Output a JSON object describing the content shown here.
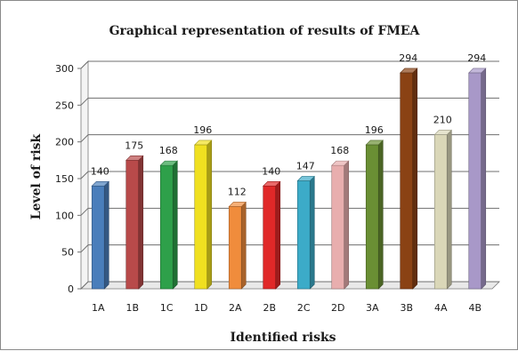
{
  "chart_data": {
    "type": "bar",
    "title": "Graphical representation of results of FMEA",
    "xlabel": "Identified risks",
    "ylabel": "Level of risk",
    "ylim": [
      0,
      300
    ],
    "yticks": [
      0,
      50,
      100,
      150,
      200,
      250,
      300
    ],
    "grid": true,
    "legend": "none",
    "three_d": true,
    "categories": [
      "1A",
      "1B",
      "1C",
      "1D",
      "2A",
      "2B",
      "2C",
      "2D",
      "3A",
      "3B",
      "4A",
      "4B"
    ],
    "values": [
      140,
      175,
      168,
      196,
      112,
      140,
      147,
      168,
      196,
      294,
      210,
      294
    ],
    "colors": [
      "#4a7ebb",
      "#b84a4a",
      "#2ea04a",
      "#f0e020",
      "#f08c3c",
      "#e02828",
      "#3cabc8",
      "#e8aeae",
      "#6a8f34",
      "#8a4214",
      "#dad7b8",
      "#a898c8"
    ]
  }
}
